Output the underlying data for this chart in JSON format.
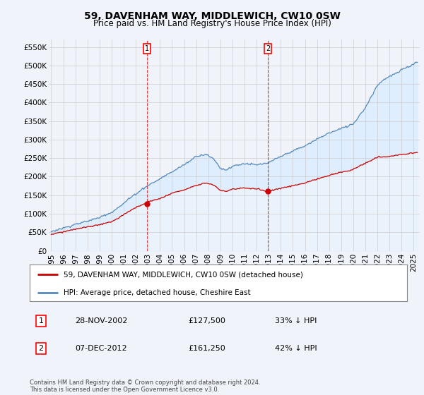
{
  "title": "59, DAVENHAM WAY, MIDDLEWICH, CW10 0SW",
  "subtitle": "Price paid vs. HM Land Registry's House Price Index (HPI)",
  "ylabel_ticks": [
    "£0",
    "£50K",
    "£100K",
    "£150K",
    "£200K",
    "£250K",
    "£300K",
    "£350K",
    "£400K",
    "£450K",
    "£500K",
    "£550K"
  ],
  "ytick_values": [
    0,
    50000,
    100000,
    150000,
    200000,
    250000,
    300000,
    350000,
    400000,
    450000,
    500000,
    550000
  ],
  "ylim": [
    0,
    570000
  ],
  "xlim_start": 1994.8,
  "xlim_end": 2025.5,
  "hpi_color": "#5588bb",
  "price_color": "#cc0000",
  "fill_color": "#ddeeff",
  "background_color": "#f0f4fa",
  "grid_color": "#cccccc",
  "purchase1_x": 2002.91,
  "purchase1_y": 127500,
  "purchase2_x": 2012.93,
  "purchase2_y": 161250,
  "legend_red_label": "59, DAVENHAM WAY, MIDDLEWICH, CW10 0SW (detached house)",
  "legend_blue_label": "HPI: Average price, detached house, Cheshire East",
  "table_row1": [
    "1",
    "28-NOV-2002",
    "£127,500",
    "33% ↓ HPI"
  ],
  "table_row2": [
    "2",
    "07-DEC-2012",
    "£161,250",
    "42% ↓ HPI"
  ],
  "footer": "Contains HM Land Registry data © Crown copyright and database right 2024.\nThis data is licensed under the Open Government Licence v3.0.",
  "title_fontsize": 10,
  "subtitle_fontsize": 8.5,
  "tick_fontsize": 7.5,
  "legend_fontsize": 7.5,
  "table_fontsize": 8,
  "footer_fontsize": 6
}
